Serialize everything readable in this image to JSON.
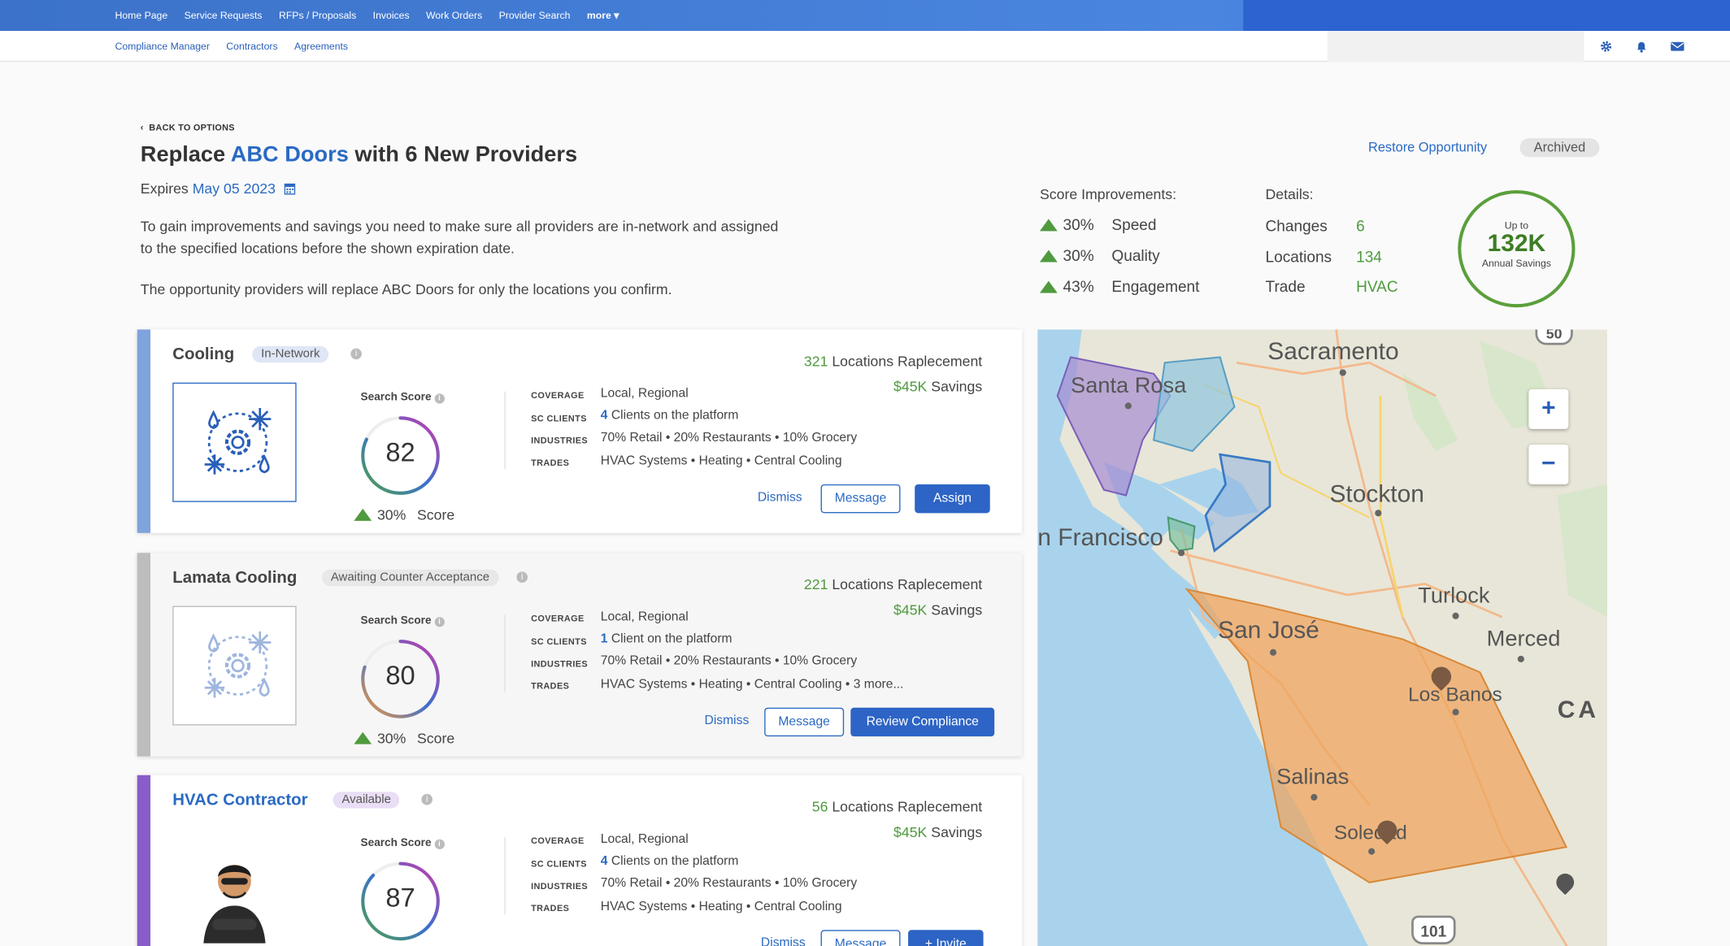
{
  "topnav": {
    "items": [
      "Home Page",
      "Service Requests",
      "RFPs / Proposals",
      "Invoices",
      "Work Orders",
      "Provider Search"
    ],
    "more": "more ▾"
  },
  "subnav": {
    "items": [
      "Compliance Manager",
      "Contractors",
      "Agreements"
    ]
  },
  "header": {
    "back": "BACK TO OPTIONS",
    "title_pre": "Replace ",
    "title_hl": "ABC Doors",
    "title_post": " with 6 New Providers",
    "expires_label": "Expires ",
    "expires_date": "May 05 2023",
    "desc1": "To gain improvements and savings you need to make sure all providers are in-network and assigned to the specified locations before the shown expiration date.",
    "desc2": "The opportunity providers will replace ABC Doors for only the locations you confirm.",
    "restore": "Restore Opportunity",
    "status": "Archived"
  },
  "score_improvements": {
    "title": "Score Improvements:",
    "items": [
      {
        "pct": "30%",
        "label": "Speed"
      },
      {
        "pct": "30%",
        "label": "Quality"
      },
      {
        "pct": "43%",
        "label": "Engagement"
      }
    ]
  },
  "details": {
    "title": "Details:",
    "items": [
      {
        "label": "Changes",
        "value": "6"
      },
      {
        "label": "Locations",
        "value": "134"
      },
      {
        "label": "Trade",
        "value": "HVAC"
      }
    ]
  },
  "savings": {
    "top": "Up to",
    "amount": "132K",
    "bottom": "Annual Savings"
  },
  "labels": {
    "search_score": "Search Score",
    "coverage": "COVERAGE",
    "sc_clients": "SC CLIENTS",
    "industries": "INDUSTRIES",
    "trades": "TRADES",
    "score": "Score",
    "locations_replacement": " Locations Raplecement",
    "savings": " Savings"
  },
  "providers": [
    {
      "name": "Cooling",
      "badge": "In-Network",
      "score": 82,
      "score_fraction": 0.82,
      "improvement": "30%",
      "coverage": "Local, Regional",
      "clients_n": "4",
      "clients_text": " Clients on the platform",
      "industries": "70% Retail • 20% Restaurants • 10% Grocery",
      "trades": "HVAC Systems • Heating • Central Cooling",
      "locations": "321",
      "savings": "$45K",
      "actions": [
        "Dismiss",
        "Message",
        "Assign"
      ]
    },
    {
      "name": "Lamata Cooling",
      "badge": "Awaiting Counter Acceptance",
      "score": 80,
      "score_fraction": 0.8,
      "improvement": "30%",
      "coverage": "Local, Regional",
      "clients_n": "1",
      "clients_text": " Client on the platform",
      "industries": "70% Retail • 20% Restaurants • 10% Grocery",
      "trades": "HVAC Systems • Heating • Central Cooling • 3 more...",
      "locations": "221",
      "savings": "$45K",
      "actions": [
        "Dismiss",
        "Message",
        "Review Compliance"
      ]
    },
    {
      "name": "HVAC Contractor",
      "badge": "Available",
      "score": 87,
      "score_fraction": 0.87,
      "coverage": "Local, Regional",
      "clients_n": "4",
      "clients_text": " Clients on the platform",
      "industries": "70% Retail • 20% Restaurants • 10% Grocery",
      "trades": "HVAC Systems • Heating • Central Cooling",
      "locations": "56",
      "savings": "$45K",
      "actions": [
        "Dismiss",
        "Message",
        "+ Invite"
      ]
    }
  ],
  "map": {
    "cities": [
      "Sacramento",
      "Santa Rosa",
      "Stockton",
      "n Francisco",
      "Turlock",
      "San José",
      "Merced",
      "Los Banos",
      "CA",
      "Salinas",
      "Soledad"
    ],
    "zoom_in": "+",
    "zoom_out": "−",
    "shields": [
      "50",
      "101"
    ]
  },
  "colors": {
    "accent": "#2a6ac4",
    "green": "#4f9a3e",
    "bar1": "#7fa3dc",
    "bar2": "#bdbdbd",
    "bar3": "#8a5cc9"
  }
}
